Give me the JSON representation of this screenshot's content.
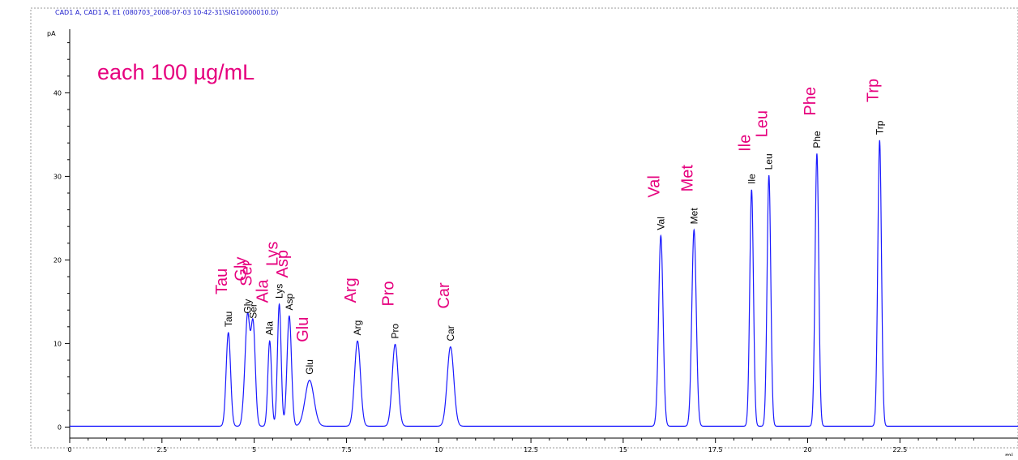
{
  "header": "CAD1 A, CAD1 A, E1 (080703_2008-07-03 10-42-31\\SIG10000010.D)",
  "note": "each 100 µg/mL",
  "colors": {
    "trace": "#1a1aff",
    "annotation": "#e6007e",
    "axis": "#000000",
    "header": "#1a1acc"
  },
  "chart_data": {
    "type": "line",
    "ylabel": "pA",
    "xlabel": "mi",
    "xlim": [
      0,
      25.7
    ],
    "ylim": [
      -2,
      48
    ],
    "x_ticks": [
      0,
      2.5,
      5,
      7.5,
      10,
      12.5,
      15,
      17.5,
      20,
      22.5
    ],
    "x_tick_labels": [
      "0",
      "2.5",
      "5",
      "7.5",
      "10",
      "12.5",
      "15",
      "17.5",
      "20",
      "22.5"
    ],
    "y_ticks": [
      0,
      10,
      20,
      30,
      40
    ],
    "y_tick_labels": [
      "0",
      "10",
      "20",
      "30",
      "40"
    ],
    "baseline": 0.1,
    "peaks": [
      {
        "name": "Tau",
        "rt": 4.3,
        "height": 11.2,
        "width": 0.06
      },
      {
        "name": "Gly",
        "rt": 4.82,
        "height": 12.8,
        "width": 0.06
      },
      {
        "name": "Ser",
        "rt": 4.97,
        "height": 12.2,
        "width": 0.06
      },
      {
        "name": "Ala",
        "rt": 5.42,
        "height": 10.2,
        "width": 0.05
      },
      {
        "name": "Lys",
        "rt": 5.68,
        "height": 14.6,
        "width": 0.05
      },
      {
        "name": "Asp",
        "rt": 5.95,
        "height": 13.2,
        "width": 0.06
      },
      {
        "name": "Glu",
        "rt": 6.5,
        "height": 5.5,
        "width": 0.12
      },
      {
        "name": "Arg",
        "rt": 7.8,
        "height": 10.2,
        "width": 0.08
      },
      {
        "name": "Pro",
        "rt": 8.82,
        "height": 9.8,
        "width": 0.08
      },
      {
        "name": "Car",
        "rt": 10.32,
        "height": 9.5,
        "width": 0.09
      },
      {
        "name": "Val",
        "rt": 16.02,
        "height": 22.8,
        "width": 0.06
      },
      {
        "name": "Met",
        "rt": 16.92,
        "height": 23.5,
        "width": 0.06
      },
      {
        "name": "Ile",
        "rt": 18.48,
        "height": 28.3,
        "width": 0.05
      },
      {
        "name": "Leu",
        "rt": 18.95,
        "height": 30.0,
        "width": 0.05
      },
      {
        "name": "Phe",
        "rt": 20.25,
        "height": 32.6,
        "width": 0.05
      },
      {
        "name": "Trp",
        "rt": 21.95,
        "height": 34.2,
        "width": 0.05
      }
    ],
    "shoulders": [
      {
        "rt": 4.72,
        "height": 1.8,
        "width": 0.05
      }
    ]
  }
}
